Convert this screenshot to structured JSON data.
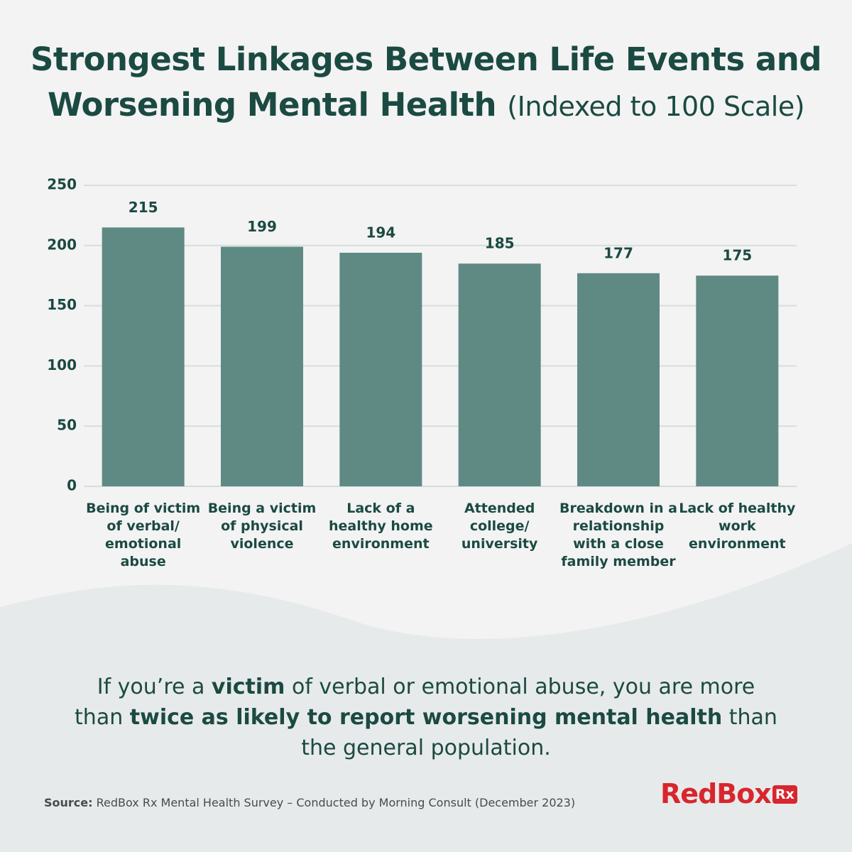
{
  "chart_data": {
    "type": "bar",
    "title": "Strongest Linkages Between Life Events and Worsening Mental Health",
    "subtitle": "(Indexed to 100 Scale)",
    "categories": [
      "Being of victim of verbal/ emotional abuse",
      "Being a victim of physical violence",
      "Lack of a healthy home environment",
      "Attended college/ university",
      "Breakdown in a relationship with a close family member",
      "Lack of healthy work environment"
    ],
    "values": [
      215,
      199,
      194,
      185,
      177,
      175
    ],
    "color": "#5f8a84",
    "ylim": [
      0,
      250
    ],
    "yticks": [
      0,
      50,
      100,
      150,
      200,
      250
    ],
    "grid": true
  },
  "callout": {
    "parts": [
      "If you’re a ",
      "victim",
      " of verbal or emotional abuse, you are more than ",
      "twice as likely to report worsening mental health",
      " than the general population."
    ]
  },
  "source": {
    "label": "Source:",
    "text": "RedBox Rx Mental Health Survey – Conducted by Morning Consult (December 2023)"
  },
  "logo": {
    "name": "RedBox",
    "badge": "Rx"
  }
}
